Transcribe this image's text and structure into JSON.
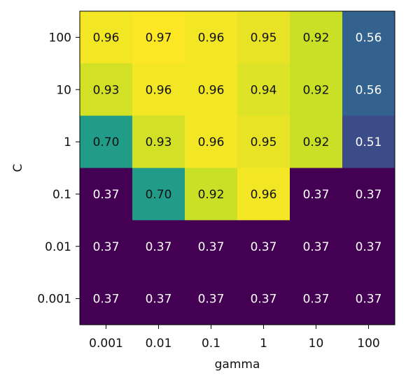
{
  "chart_data": {
    "type": "heatmap",
    "title": "",
    "xlabel": "gamma",
    "ylabel": "C",
    "x_categories": [
      "0.001",
      "0.01",
      "0.1",
      "1",
      "10",
      "100"
    ],
    "y_categories": [
      "100",
      "10",
      "1",
      "0.1",
      "0.01",
      "0.001"
    ],
    "values": [
      [
        0.96,
        0.97,
        0.96,
        0.95,
        0.92,
        0.56
      ],
      [
        0.93,
        0.96,
        0.96,
        0.94,
        0.92,
        0.56
      ],
      [
        0.7,
        0.93,
        0.96,
        0.95,
        0.92,
        0.51
      ],
      [
        0.37,
        0.7,
        0.92,
        0.96,
        0.37,
        0.37
      ],
      [
        0.37,
        0.37,
        0.37,
        0.37,
        0.37,
        0.37
      ],
      [
        0.37,
        0.37,
        0.37,
        0.37,
        0.37,
        0.37
      ]
    ],
    "value_format": "0.00",
    "colormap": "viridis",
    "colorbar": false,
    "grid": false
  }
}
